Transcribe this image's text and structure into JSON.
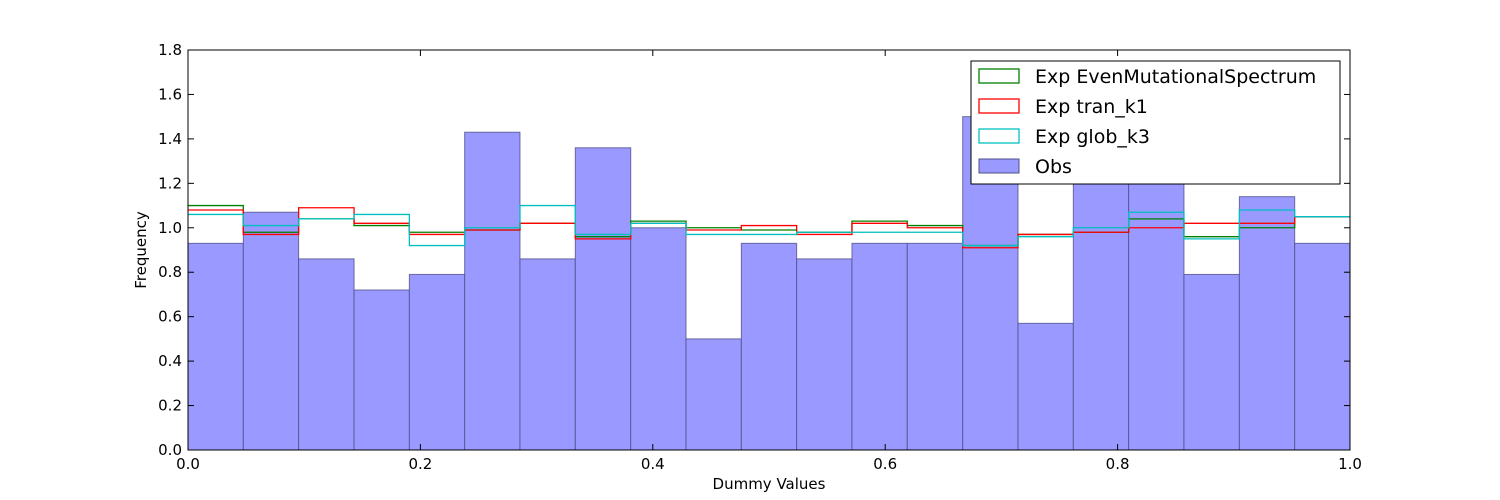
{
  "chart_data": {
    "type": "bar",
    "title": "",
    "xlabel": "Dummy Values",
    "ylabel": "Frequency",
    "xlim": [
      0.0,
      1.0
    ],
    "ylim": [
      0.0,
      1.8
    ],
    "x_ticks": [
      "0.0",
      "0.2",
      "0.4",
      "0.6",
      "0.8",
      "1.0"
    ],
    "y_ticks": [
      "0.0",
      "0.2",
      "0.4",
      "0.6",
      "0.8",
      "1.0",
      "1.2",
      "1.4",
      "1.6",
      "1.8"
    ],
    "bin_edges": [
      0.0,
      0.0476,
      0.0952,
      0.1429,
      0.1905,
      0.2381,
      0.2857,
      0.3333,
      0.381,
      0.4286,
      0.4762,
      0.5238,
      0.5714,
      0.619,
      0.6667,
      0.7143,
      0.7619,
      0.8095,
      0.8571,
      0.9048,
      0.9524,
      1.0
    ],
    "grid": false,
    "legend_position": "top-right",
    "series": [
      {
        "name": "Exp EvenMutationalSpectrum",
        "style": "step",
        "color": "#008000",
        "values": [
          1.1,
          0.98,
          1.04,
          1.01,
          0.98,
          0.99,
          1.02,
          0.96,
          1.03,
          1.0,
          0.99,
          0.98,
          1.03,
          1.01,
          0.92,
          0.97,
          0.98,
          1.04,
          0.96,
          1.0,
          1.05,
          0.98
        ]
      },
      {
        "name": "Exp tran_k1",
        "style": "step",
        "color": "#ff0000",
        "values": [
          1.08,
          0.97,
          1.09,
          1.02,
          0.97,
          0.99,
          1.02,
          0.95,
          1.02,
          0.99,
          1.01,
          0.97,
          1.02,
          1.0,
          0.91,
          0.97,
          0.98,
          1.0,
          1.02,
          1.02,
          1.05,
          0.97
        ]
      },
      {
        "name": "Exp glob_k3",
        "style": "step",
        "color": "#00bfbf",
        "values": [
          1.06,
          1.01,
          1.04,
          1.06,
          0.92,
          1.0,
          1.1,
          0.97,
          1.02,
          0.97,
          0.97,
          0.98,
          0.98,
          0.98,
          0.92,
          0.96,
          1.0,
          1.07,
          0.95,
          1.08,
          1.05,
          0.92
        ]
      },
      {
        "name": "Obs",
        "style": "bar",
        "color": "#9999ff",
        "values": [
          0.93,
          1.07,
          0.86,
          0.72,
          0.79,
          1.43,
          0.86,
          1.36,
          1.0,
          0.5,
          0.93,
          0.86,
          0.93,
          0.93,
          1.5,
          0.57,
          1.22,
          1.22,
          0.79,
          1.14,
          0.93
        ]
      }
    ]
  }
}
